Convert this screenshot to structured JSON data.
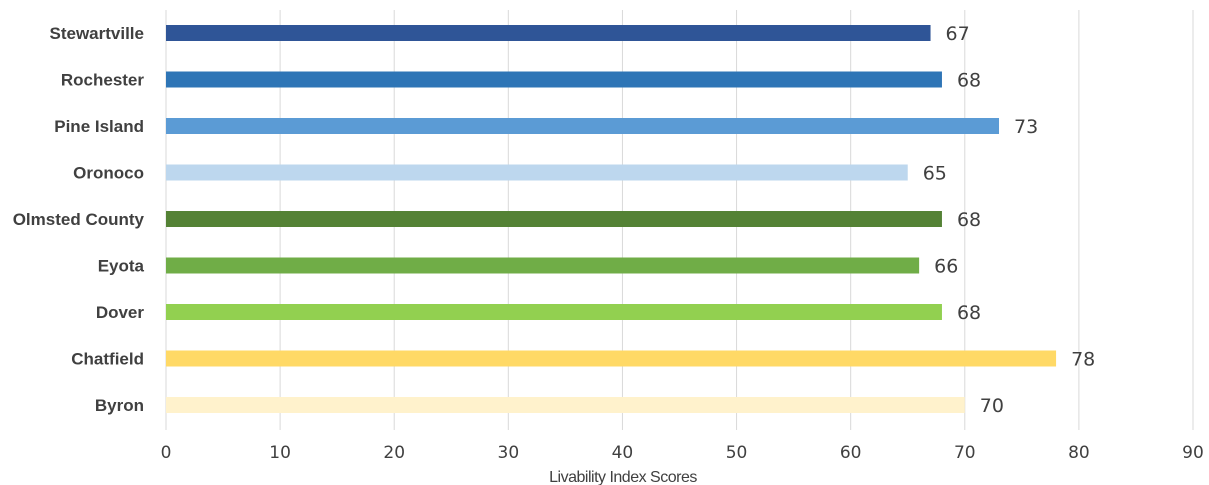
{
  "chart_data": {
    "type": "bar",
    "orientation": "horizontal",
    "title": "",
    "xlabel": "Livability Index Scores",
    "ylabel": "",
    "xlim": [
      0,
      90
    ],
    "x_ticks": [
      0,
      10,
      20,
      30,
      40,
      50,
      60,
      70,
      80,
      90
    ],
    "grid": true,
    "legend": "none",
    "categories": [
      "Stewartville",
      "Rochester",
      "Pine Island",
      "Oronoco",
      "Olmsted County",
      "Eyota",
      "Dover",
      "Chatfield",
      "Byron"
    ],
    "values": [
      67,
      68,
      73,
      65,
      68,
      66,
      68,
      78,
      70
    ],
    "colors": [
      "#2f5597",
      "#2e75b6",
      "#5b9bd5",
      "#bdd7ee",
      "#548235",
      "#70ad47",
      "#92d050",
      "#ffd966",
      "#fff2cc"
    ]
  }
}
